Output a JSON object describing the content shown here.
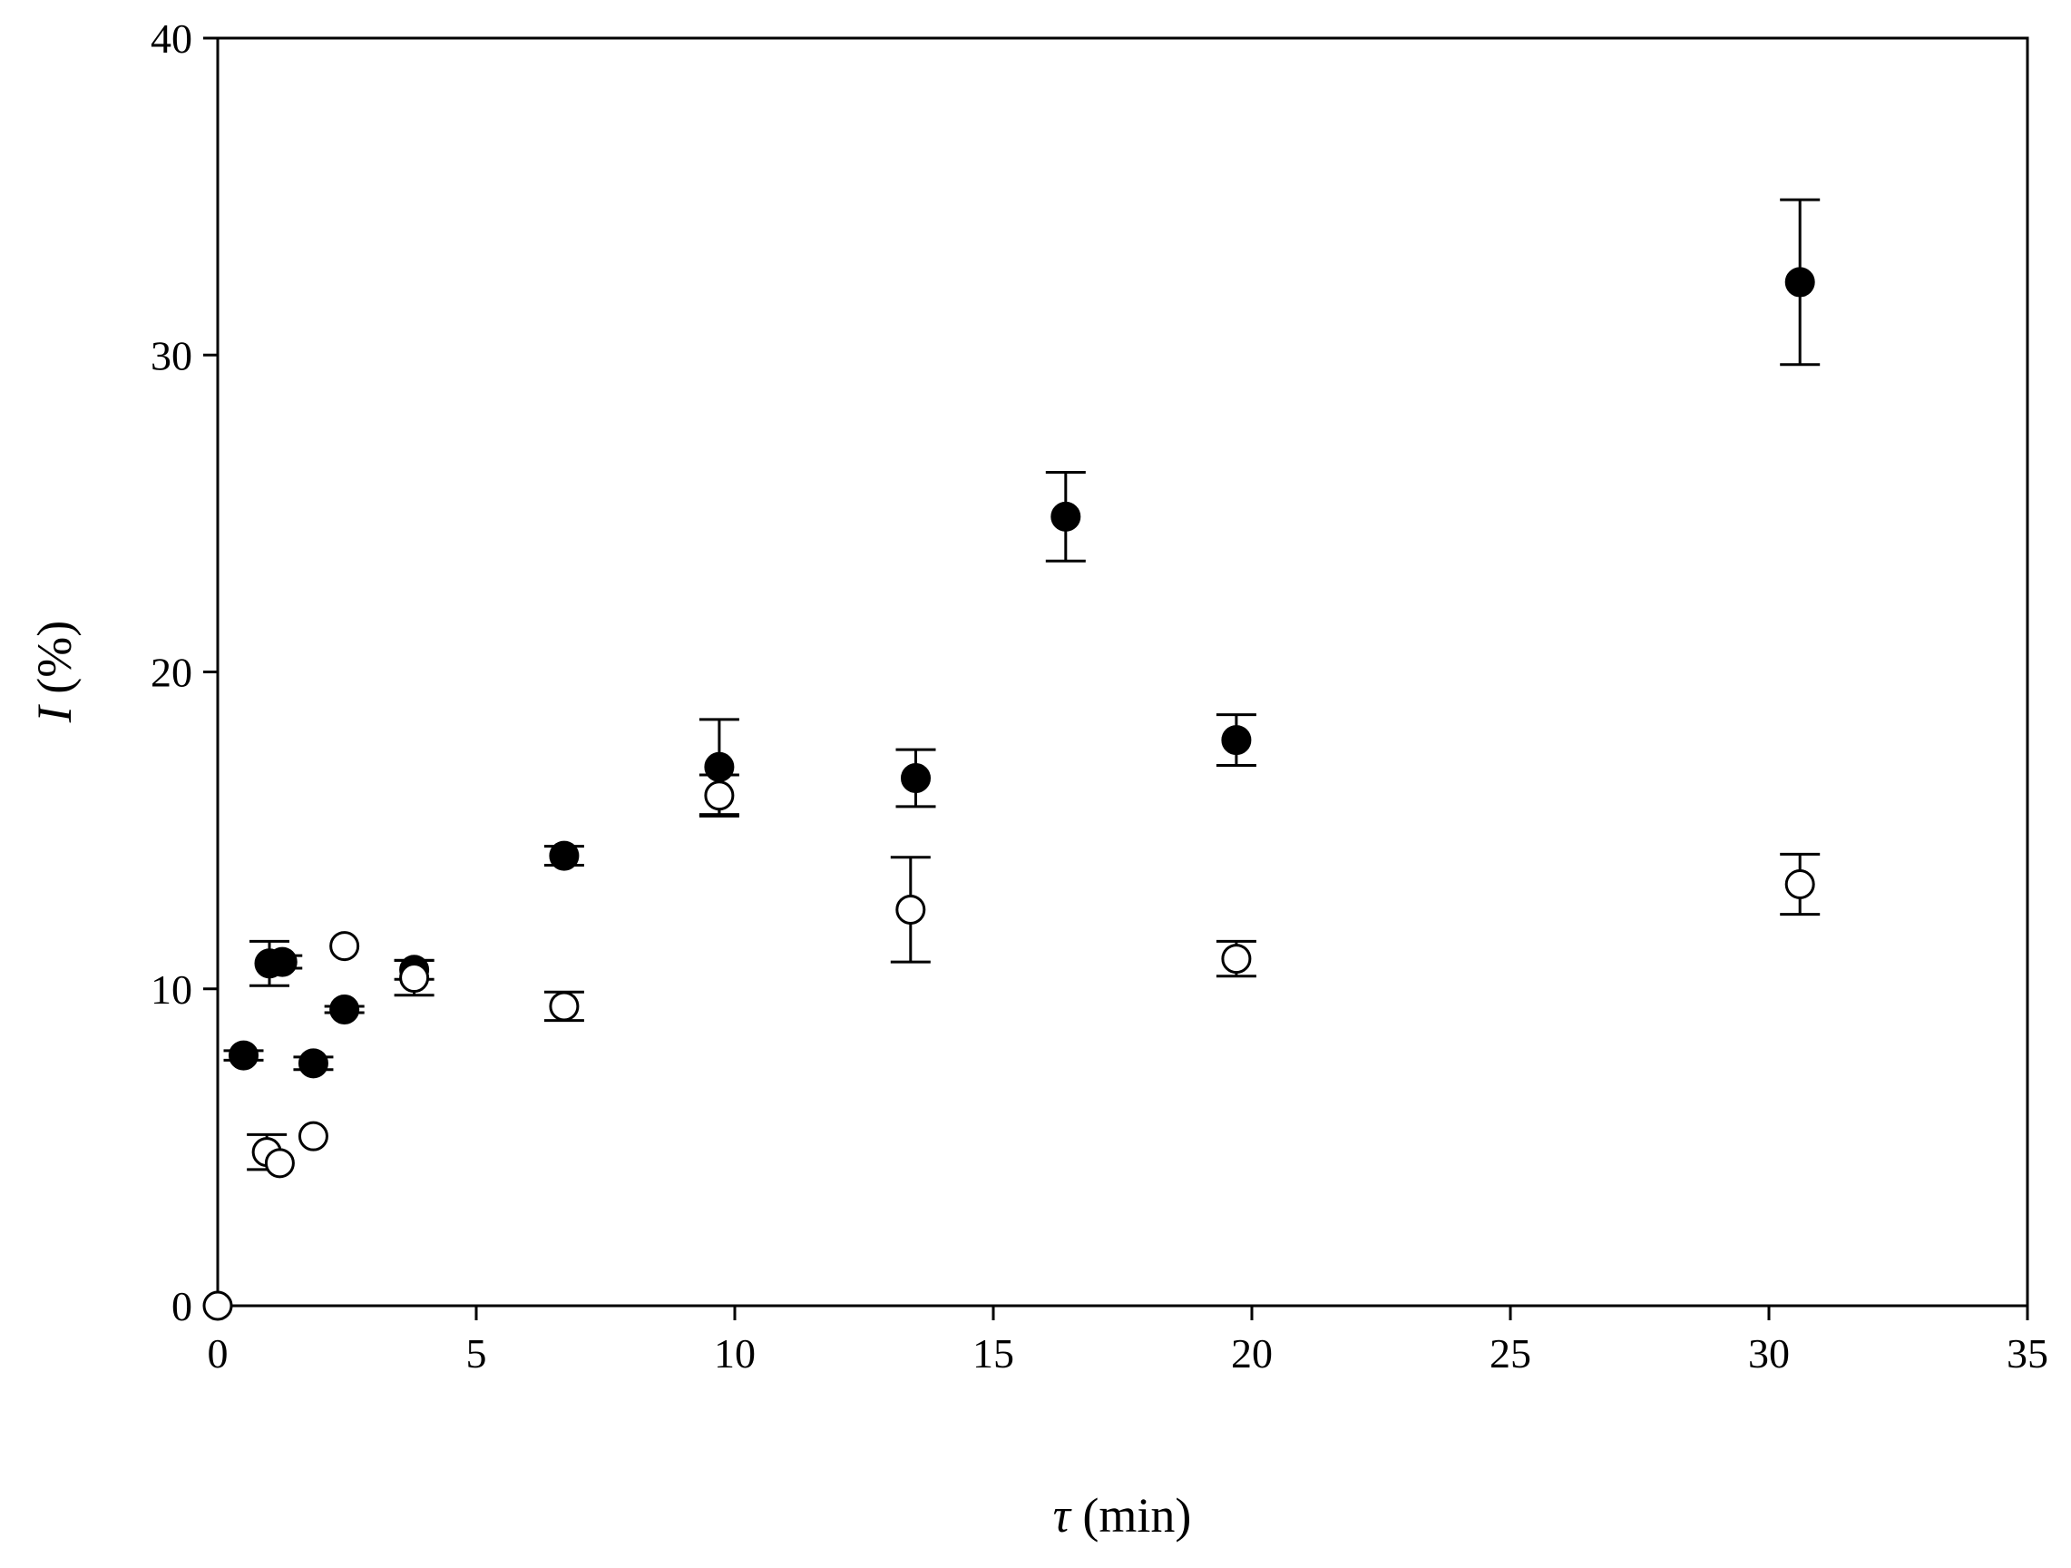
{
  "chart_data": {
    "type": "scatter",
    "title": "",
    "xlabel": {
      "symbol": "τ",
      "unit": " (min)"
    },
    "ylabel": {
      "symbol": "I",
      "unit": " (%)"
    },
    "xlim": [
      0,
      35
    ],
    "ylim": [
      0,
      40
    ],
    "xticks": [
      0,
      5,
      10,
      15,
      20,
      25,
      30,
      35
    ],
    "yticks": [
      0,
      10,
      20,
      30,
      40
    ],
    "grid": false,
    "series": [
      {
        "marker": "filled-circle",
        "points": [
          {
            "x": 0.5,
            "y": 7.9,
            "err": 0.15
          },
          {
            "x": 1.0,
            "y": 10.8,
            "err": 0.7
          },
          {
            "x": 1.25,
            "y": 10.85,
            "err": 0.2
          },
          {
            "x": 1.85,
            "y": 7.65,
            "err": 0.2
          },
          {
            "x": 2.45,
            "y": 9.35,
            "err": 0.1
          },
          {
            "x": 3.8,
            "y": 10.6,
            "err": 0.3
          },
          {
            "x": 6.7,
            "y": 14.2,
            "err": 0.3
          },
          {
            "x": 9.7,
            "y": 17.0,
            "err": 1.5
          },
          {
            "x": 13.5,
            "y": 16.65,
            "err": 0.9
          },
          {
            "x": 16.4,
            "y": 24.9,
            "err": 1.4
          },
          {
            "x": 19.7,
            "y": 17.85,
            "err": 0.8
          },
          {
            "x": 30.6,
            "y": 32.3,
            "err": 2.6
          }
        ]
      },
      {
        "marker": "open-circle",
        "points": [
          {
            "x": 0.0,
            "y": 0.0,
            "err": 0
          },
          {
            "x": 0.95,
            "y": 4.85,
            "err": 0.55
          },
          {
            "x": 1.2,
            "y": 4.5,
            "err": 0
          },
          {
            "x": 1.85,
            "y": 5.35,
            "err": 0
          },
          {
            "x": 2.45,
            "y": 11.35,
            "err": 0
          },
          {
            "x": 3.8,
            "y": 10.35,
            "err": 0.55
          },
          {
            "x": 6.7,
            "y": 9.45,
            "err": 0.45
          },
          {
            "x": 9.7,
            "y": 16.1,
            "err": 0.65
          },
          {
            "x": 13.4,
            "y": 12.5,
            "err": 1.65
          },
          {
            "x": 19.7,
            "y": 10.95,
            "err": 0.55
          },
          {
            "x": 30.6,
            "y": 13.3,
            "err": 0.95
          }
        ]
      }
    ]
  }
}
